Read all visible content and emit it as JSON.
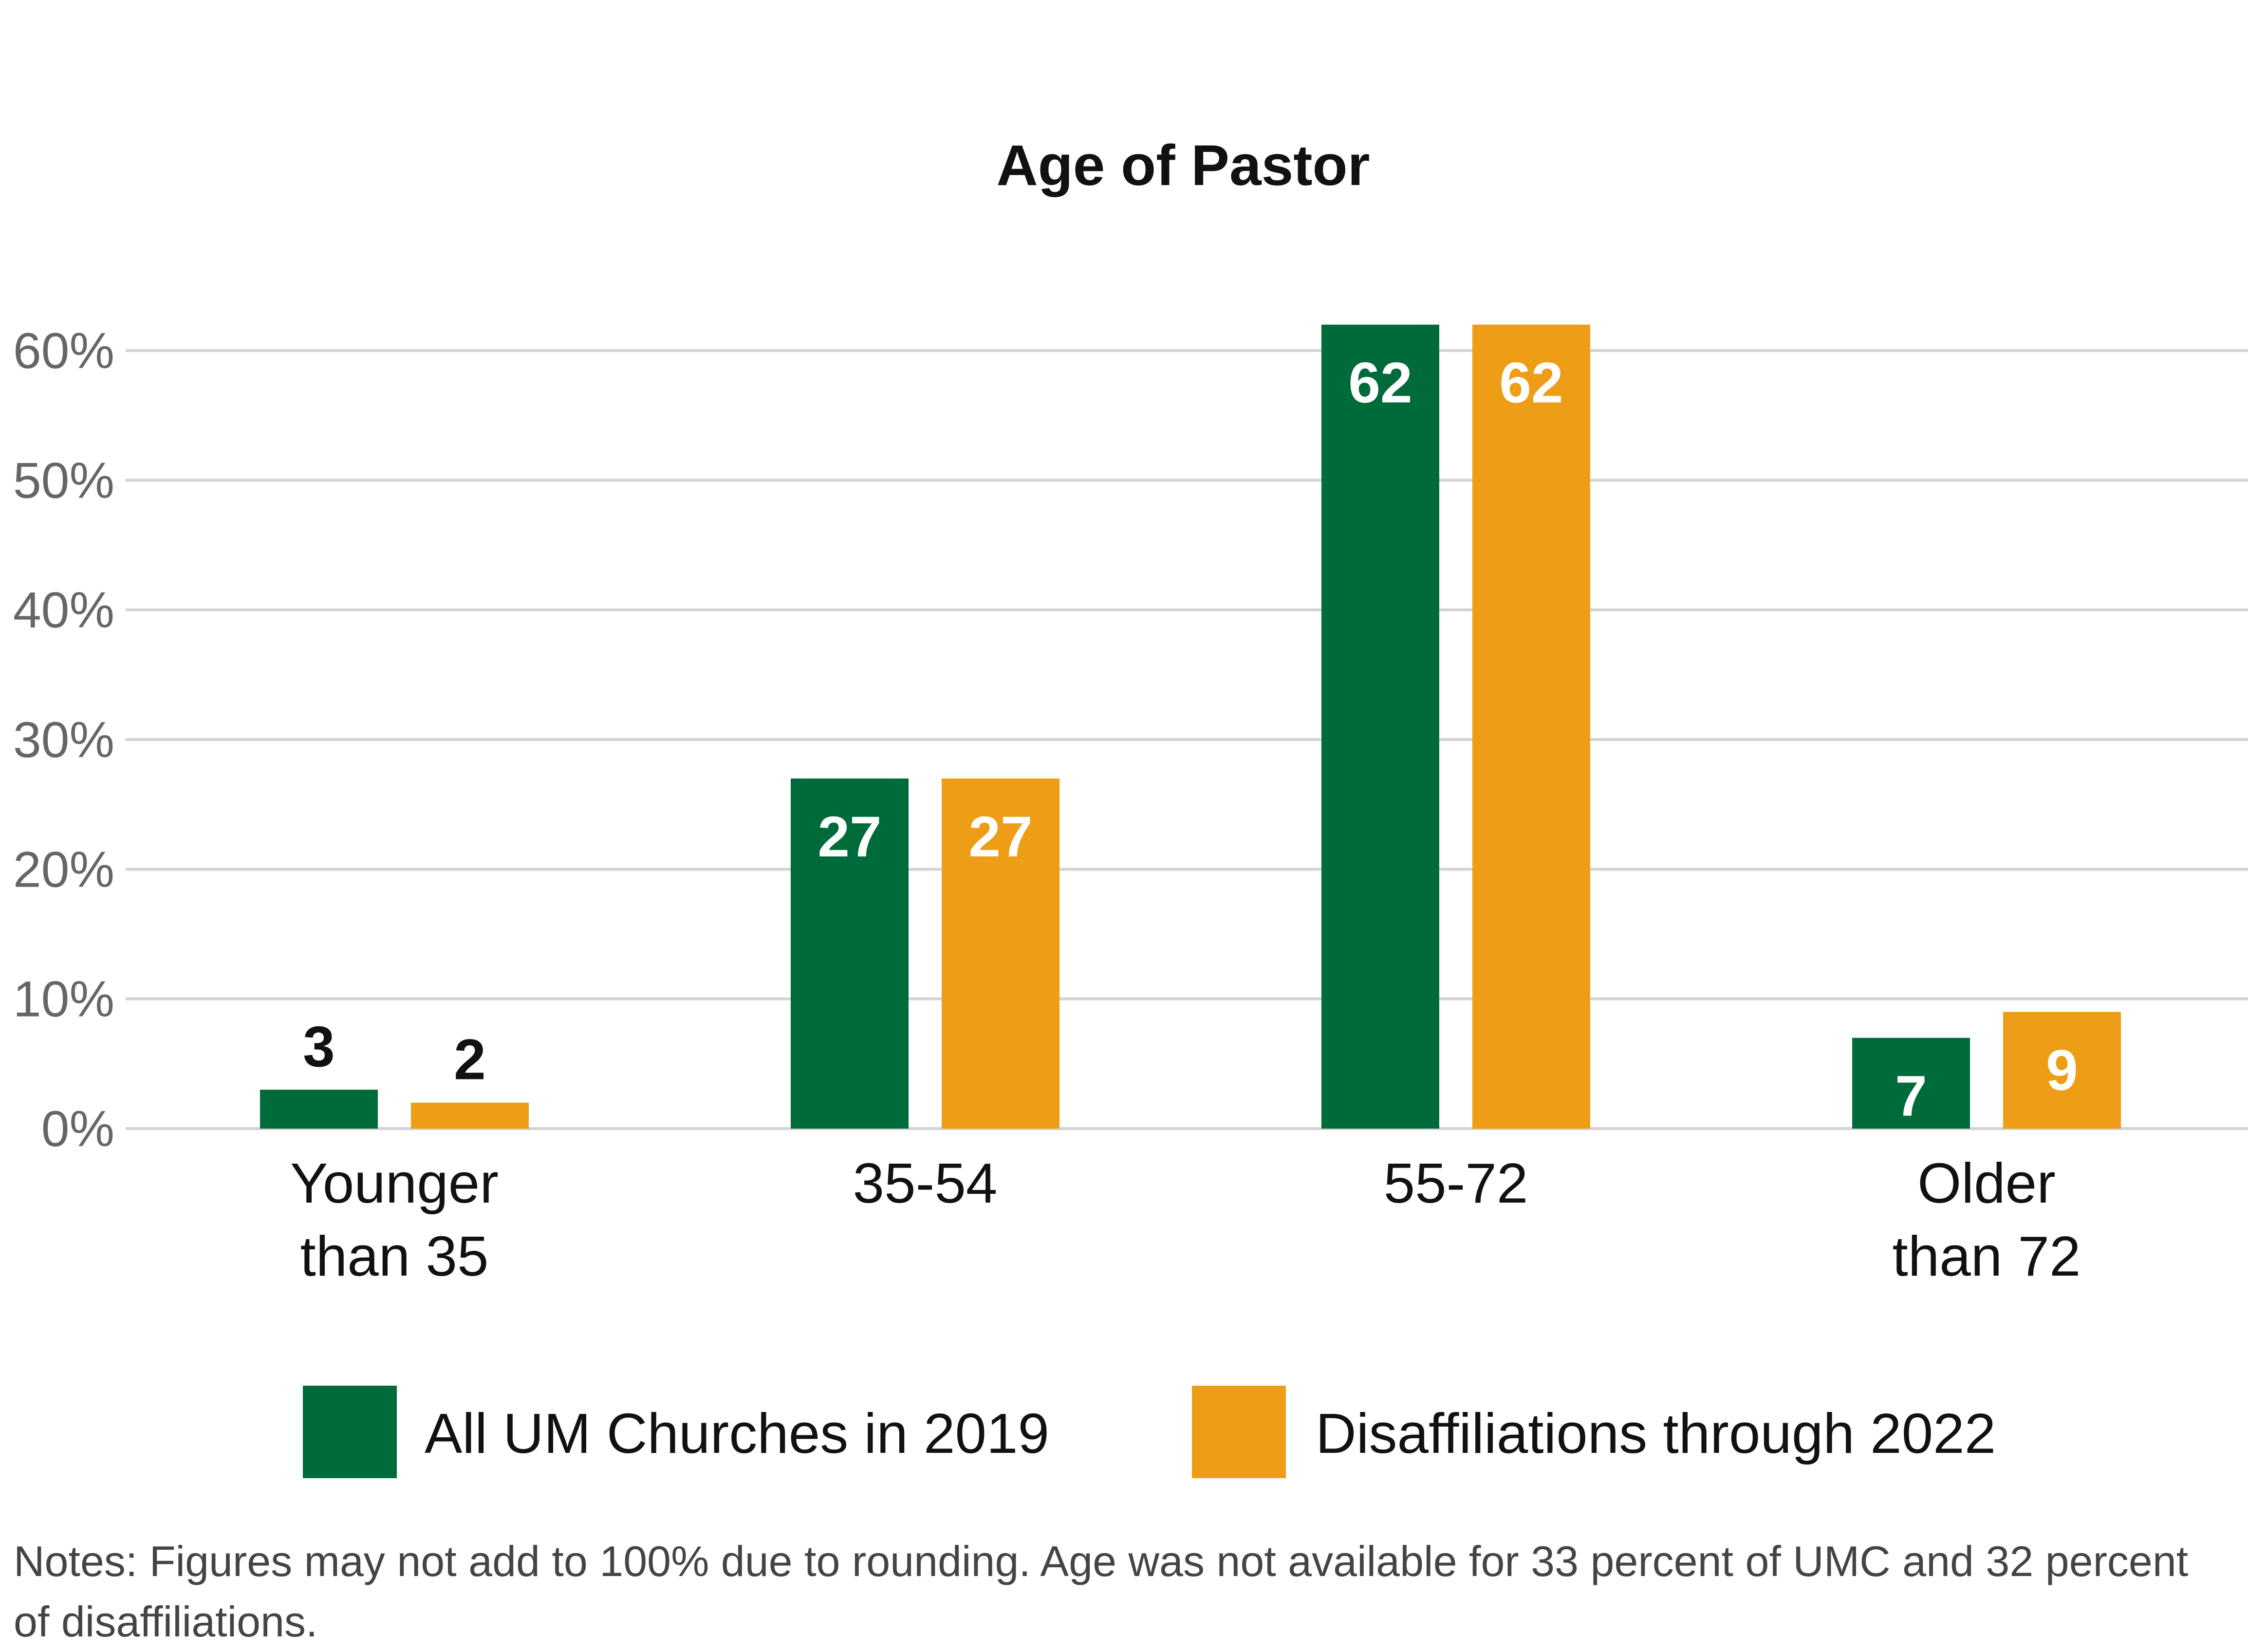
{
  "chart_data": {
    "type": "bar",
    "title": "Age of Pastor",
    "xlabel": "",
    "ylabel": "",
    "categories": [
      [
        "Younger",
        "than 35"
      ],
      [
        "35-54"
      ],
      [
        "55-72"
      ],
      [
        "Older",
        "than 72"
      ]
    ],
    "series": [
      {
        "name": "All UM Churches in 2019",
        "color": "#006B3A",
        "values": [
          3,
          27,
          62,
          7
        ]
      },
      {
        "name": "Disaffiliations through 2022",
        "color": "#ED9E16",
        "values": [
          2,
          27,
          62,
          9
        ]
      }
    ],
    "ylim": [
      0,
      60
    ],
    "yticks": [
      0,
      10,
      20,
      30,
      40,
      50,
      60
    ],
    "ytick_labels": [
      "0%",
      "10%",
      "20%",
      "30%",
      "40%",
      "50%",
      "60%"
    ],
    "grid": true,
    "legend_position": "bottom",
    "data_label_colors": {
      "outside": "#111111",
      "inside": "#ffffff"
    }
  },
  "note": "Notes: Figures may not add to 100% due to rounding. Age was not available for 33 percent of UMC and 32 percent of disaffiliations."
}
